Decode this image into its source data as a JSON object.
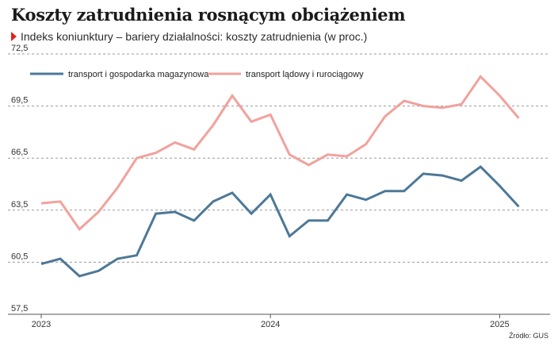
{
  "title": "Koszty zatrudnienia rosnącym obciążeniem",
  "subtitle": "Indeks koniunktury – bariery działalności: koszty zatrudnienia (w proc.)",
  "source": "Źródło: GUS",
  "chart_data": {
    "type": "line",
    "ylim": [
      57.5,
      72.5
    ],
    "yticks": [
      "72,5",
      "69,5",
      "66,5",
      "63,5",
      "60,5",
      "57,5"
    ],
    "ytick_values": [
      72.5,
      69.5,
      66.5,
      63.5,
      60.5,
      57.5
    ],
    "xticks": [
      {
        "label": "2023",
        "x": 0
      },
      {
        "label": "2024",
        "x": 12
      },
      {
        "label": "2025",
        "x": 24
      }
    ],
    "x": [
      0,
      1,
      2,
      3,
      4,
      5,
      6,
      7,
      8,
      9,
      10,
      11,
      12,
      13,
      14,
      15,
      16,
      17,
      18,
      19,
      20,
      21,
      22,
      23,
      24,
      25
    ],
    "grid": true,
    "legend_position": "top-left",
    "series": [
      {
        "name": "transport i gospodarka magazynowa",
        "color": "#4d7898",
        "values": [
          60.4,
          60.7,
          59.7,
          60.0,
          60.7,
          60.9,
          63.3,
          63.4,
          62.9,
          64.0,
          64.5,
          63.3,
          64.4,
          62.0,
          62.9,
          62.9,
          64.4,
          64.1,
          64.6,
          64.6,
          65.6,
          65.5,
          65.2,
          66.0,
          64.9,
          63.7
        ]
      },
      {
        "name": "transport lądowy i rurociągowy",
        "color": "#f2a19c",
        "values": [
          63.9,
          64.0,
          62.4,
          63.4,
          64.8,
          66.5,
          66.8,
          67.4,
          67.0,
          68.4,
          70.1,
          68.6,
          69.0,
          66.7,
          66.1,
          66.7,
          66.6,
          67.3,
          68.9,
          69.8,
          69.5,
          69.4,
          69.6,
          71.2,
          70.1,
          68.8
        ]
      }
    ]
  }
}
